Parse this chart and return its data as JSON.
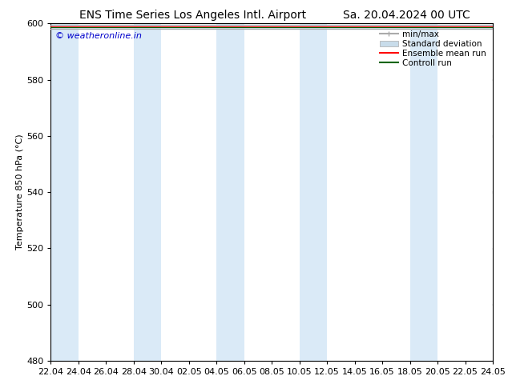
{
  "title_left": "ENS Time Series Los Angeles Intl. Airport",
  "title_right": "Sa. 20.04.2024 00 UTC",
  "ylabel": "Temperature 850 hPa (°C)",
  "xlim_start": 0,
  "xlim_end": 32,
  "ylim": [
    480,
    600
  ],
  "yticks": [
    480,
    500,
    520,
    540,
    560,
    580,
    600
  ],
  "xtick_labels": [
    "22.04",
    "24.04",
    "26.04",
    "28.04",
    "30.04",
    "02.05",
    "04.05",
    "06.05",
    "08.05",
    "10.05",
    "12.05",
    "14.05",
    "16.05",
    "18.05",
    "20.05",
    "22.05",
    "24.05"
  ],
  "xtick_positions": [
    0,
    2,
    4,
    6,
    8,
    10,
    12,
    14,
    16,
    18,
    20,
    22,
    24,
    26,
    28,
    30,
    32
  ],
  "shaded_bands": [
    {
      "x_start": 0,
      "x_end": 2,
      "color": "#daeaf7"
    },
    {
      "x_start": 6,
      "x_end": 8,
      "color": "#daeaf7"
    },
    {
      "x_start": 12,
      "x_end": 14,
      "color": "#daeaf7"
    },
    {
      "x_start": 18,
      "x_end": 20,
      "color": "#daeaf7"
    },
    {
      "x_start": 26,
      "x_end": 28,
      "color": "#daeaf7"
    }
  ],
  "minmax_color": "#aaaaaa",
  "stddev_color": "#c8dcea",
  "ensemble_mean_color": "#ff0000",
  "control_run_color": "#006400",
  "watermark_text": "© weatheronline.in",
  "watermark_color": "#0000cc",
  "background_color": "#ffffff",
  "plot_bg_color": "#ffffff",
  "legend_labels": [
    "min/max",
    "Standard deviation",
    "Ensemble mean run",
    "Controll run"
  ],
  "title_fontsize": 10,
  "axis_fontsize": 8,
  "tick_fontsize": 8,
  "legend_fontsize": 7.5
}
